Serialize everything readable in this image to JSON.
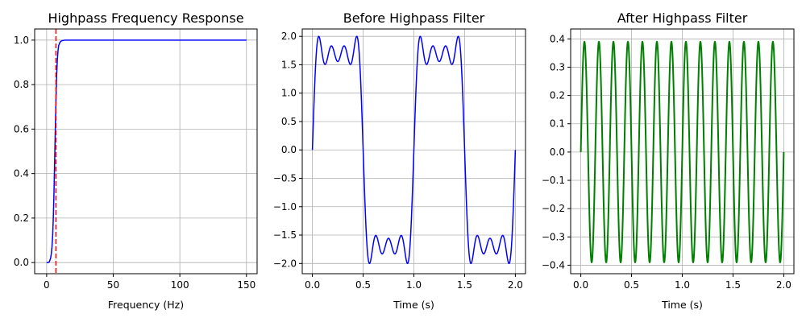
{
  "chart_data": [
    {
      "type": "line",
      "title": "Highpass Frequency Response",
      "xlabel": "Frequency (Hz)",
      "ylabel": "",
      "xlim": [
        -9,
        158
      ],
      "ylim": [
        -0.05,
        1.05
      ],
      "xticks": [
        0,
        50,
        100,
        150
      ],
      "yticks": [
        0.0,
        0.2,
        0.4,
        0.6,
        0.8,
        1.0
      ],
      "xtick_labels": [
        "0",
        "50",
        "100",
        "150"
      ],
      "ytick_labels": [
        "0.0",
        "0.2",
        "0.4",
        "0.6",
        "0.8",
        "1.0"
      ],
      "grid": true,
      "series": [
        {
          "color": "#0000ff",
          "linewidth": 1.5,
          "linestyle": "solid",
          "x": [
            0,
            1,
            2,
            3,
            3.5,
            4,
            4.5,
            5,
            5.5,
            6,
            6.5,
            7,
            7.5,
            8,
            8.5,
            9,
            10,
            11,
            12,
            14,
            20,
            50,
            100,
            150
          ],
          "y": [
            0.0,
            0.0,
            0.003,
            0.02,
            0.04,
            0.07,
            0.12,
            0.2,
            0.31,
            0.45,
            0.6,
            0.73,
            0.84,
            0.91,
            0.95,
            0.975,
            0.99,
            0.996,
            0.998,
            1.0,
            1.0,
            1.0,
            1.0,
            1.0
          ]
        }
      ],
      "vlines": [
        {
          "x": 7,
          "color": "#ff0000",
          "linestyle": "dashed",
          "linewidth": 1.5
        }
      ]
    },
    {
      "type": "line",
      "title": "Before Highpass Filter",
      "xlabel": "Time (s)",
      "ylabel": "",
      "xlim": [
        -0.1,
        2.1
      ],
      "ylim": [
        -2.18,
        2.13
      ],
      "xticks": [
        0.0,
        0.5,
        1.0,
        1.5,
        2.0
      ],
      "yticks": [
        -2.0,
        -1.5,
        -1.0,
        -0.5,
        0.0,
        0.5,
        1.0,
        1.5,
        2.0
      ],
      "xtick_labels": [
        "0.0",
        "0.5",
        "1.0",
        "1.5",
        "2.0"
      ],
      "ytick_labels": [
        "−2.0",
        "−1.5",
        "−1.0",
        "−0.5",
        "0.0",
        "0.5",
        "1.0",
        "1.5",
        "2.0"
      ],
      "grid": true,
      "series": [
        {
          "color": "#0000ff",
          "linewidth": 1.5,
          "linestyle": "solid",
          "signal": "square_wave_fourier",
          "harmonics": [
            1,
            3,
            5,
            7
          ],
          "fundamental_hz": 1,
          "amplitude": 2.0,
          "t_range": [
            0,
            2
          ]
        }
      ]
    },
    {
      "type": "line",
      "title": "After Highpass Filter",
      "xlabel": "Time (s)",
      "ylabel": "",
      "xlim": [
        -0.1,
        2.1
      ],
      "ylim": [
        -0.43,
        0.435
      ],
      "xticks": [
        0.0,
        0.5,
        1.0,
        1.5,
        2.0
      ],
      "yticks": [
        -0.4,
        -0.3,
        -0.2,
        -0.1,
        0.0,
        0.1,
        0.2,
        0.3,
        0.4
      ],
      "xtick_labels": [
        "0.0",
        "0.5",
        "1.0",
        "1.5",
        "2.0"
      ],
      "ytick_labels": [
        "−0.4",
        "−0.3",
        "−0.2",
        "−0.1",
        "0.0",
        "0.1",
        "0.2",
        "0.3",
        "0.4"
      ],
      "grid": true,
      "series": [
        {
          "color": "#008000",
          "linewidth": 2.0,
          "linestyle": "solid",
          "signal": "square_wave_fourier",
          "harmonics": [
            7
          ],
          "fundamental_hz": 1,
          "amplitude": 0.39,
          "t_range": [
            0,
            2
          ]
        }
      ]
    }
  ]
}
